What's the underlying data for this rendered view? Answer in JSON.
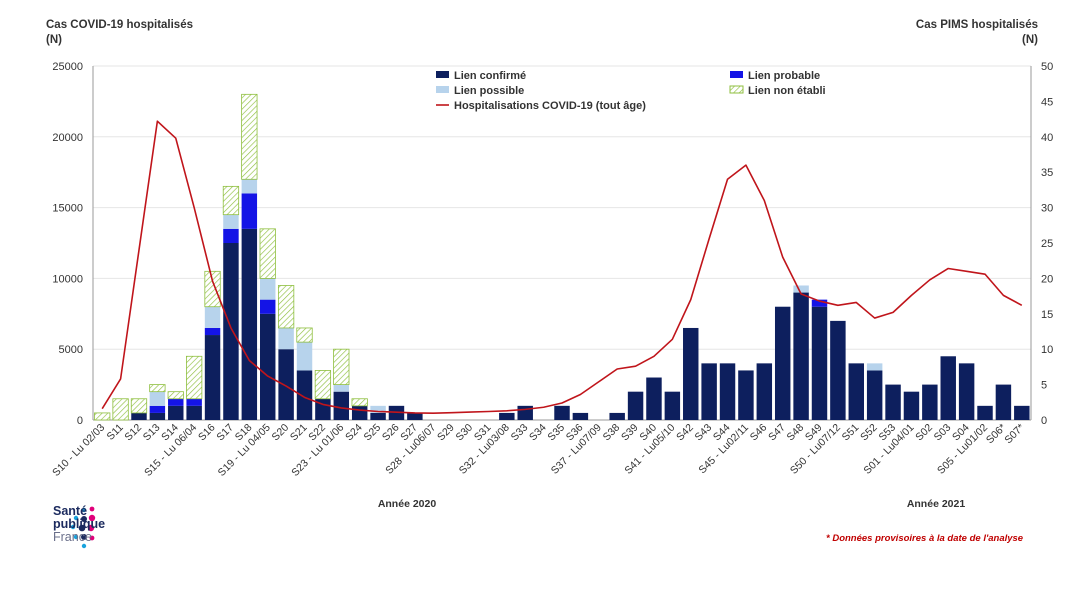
{
  "chart_data": {
    "type": "bar+line",
    "left_axis_title": [
      "Cas COVID-19 hospitalisés",
      "(N)"
    ],
    "right_axis_title": [
      "Cas PIMS hospitalisés",
      "(N)"
    ],
    "left_ylim": [
      0,
      25000
    ],
    "left_ticks": [
      0,
      5000,
      10000,
      15000,
      20000,
      25000
    ],
    "right_ylim": [
      0,
      50
    ],
    "right_ticks": [
      0,
      5,
      10,
      15,
      20,
      25,
      30,
      35,
      40,
      45,
      50
    ],
    "categories": [
      "S10 - Lu 02/03",
      "S11",
      "S12",
      "S13",
      "S14",
      "S15 - Lu 06/04",
      "S16",
      "S17",
      "S18",
      "S19 - Lu 04/05",
      "S20",
      "S21",
      "S22",
      "S23 - Lu 01/06",
      "S24",
      "S25",
      "S26",
      "S27",
      "S28 - Lu06/07",
      "S29",
      "S30",
      "S31",
      "S32 - Lu03/08",
      "S33",
      "S34",
      "S35",
      "S36",
      "S37 - Lu07/09",
      "S38",
      "S39",
      "S40",
      "S41 - Lu05/10",
      "S42",
      "S43",
      "S44",
      "S45 - Lu02/11",
      "S46",
      "S47",
      "S48",
      "S49",
      "S50 - Lu07/12",
      "S51",
      "S52",
      "S53",
      "S01 - Lu04/01",
      "S02",
      "S03",
      "S04",
      "S05 - Lu01/02",
      "S06*",
      "S07*"
    ],
    "series": [
      {
        "name": "Lien confirmé",
        "axis": "right",
        "color": "#0d1f5e",
        "values": [
          0,
          0,
          1,
          1,
          2,
          2,
          12,
          25,
          27,
          15,
          10,
          7,
          3,
          4,
          2,
          1,
          2,
          1,
          0,
          0,
          0,
          0,
          1,
          2,
          0,
          2,
          1,
          0,
          1,
          4,
          6,
          4,
          13,
          8,
          8,
          7,
          8,
          16,
          18,
          16,
          14,
          8,
          7,
          5,
          4,
          5,
          9,
          8,
          2,
          5,
          2
        ]
      },
      {
        "name": "Lien probable",
        "axis": "right",
        "color": "#1414e6",
        "values": [
          0,
          0,
          0,
          1,
          1,
          1,
          1,
          2,
          5,
          2,
          0,
          0,
          0,
          0,
          0,
          0,
          0,
          0,
          0,
          0,
          0,
          0,
          0,
          0,
          0,
          0,
          0,
          0,
          0,
          0,
          0,
          0,
          0,
          0,
          0,
          0,
          0,
          0,
          0,
          1,
          0,
          0,
          0,
          0,
          0,
          0,
          0,
          0,
          0,
          0,
          0
        ]
      },
      {
        "name": "Lien possible",
        "axis": "right",
        "color": "#b7d3ec",
        "values": [
          0,
          0,
          0,
          2,
          0,
          0,
          3,
          2,
          2,
          3,
          3,
          4,
          0,
          1,
          0,
          1,
          0,
          0,
          0,
          0,
          0,
          0,
          0,
          0,
          0,
          0,
          0,
          0,
          0,
          0,
          0,
          0,
          0,
          0,
          0,
          0,
          0,
          0,
          1,
          0,
          0,
          0,
          1,
          0,
          0,
          0,
          0,
          0,
          0,
          0,
          0
        ]
      },
      {
        "name": "Lien non établi",
        "axis": "right",
        "color": "#8fbf3f",
        "values": [
          1,
          3,
          2,
          1,
          1,
          6,
          5,
          4,
          12,
          7,
          6,
          2,
          4,
          5,
          1,
          0,
          0,
          0,
          0,
          0,
          0,
          0,
          0,
          0,
          0,
          0,
          0,
          0,
          0,
          0,
          0,
          0,
          0,
          0,
          0,
          0,
          0,
          0,
          0,
          0,
          0,
          0,
          0,
          0,
          0,
          0,
          0,
          0,
          0,
          0,
          0
        ]
      },
      {
        "name": "Hospitalisations COVID-19 (tout âge)",
        "axis": "left",
        "color": "#c0151b",
        "line": true,
        "values": [
          800,
          2900,
          12000,
          21100,
          19900,
          15000,
          9800,
          6500,
          4200,
          3100,
          2400,
          1600,
          1100,
          850,
          700,
          600,
          550,
          500,
          480,
          520,
          560,
          600,
          650,
          750,
          900,
          1200,
          1800,
          2700,
          3600,
          3800,
          4500,
          5700,
          8500,
          12800,
          17000,
          18000,
          15500,
          11500,
          8900,
          8400,
          8100,
          8300,
          7200,
          7600,
          8800,
          9900,
          10700,
          10500,
          10300,
          8800,
          8100
        ]
      }
    ],
    "year_labels": [
      "Année 2020",
      "Année 2021"
    ]
  },
  "logo": {
    "line1": "Santé",
    "line2": "publique",
    "line3": "France"
  },
  "footnote": "* Données provisoires à la date de l'analyse"
}
